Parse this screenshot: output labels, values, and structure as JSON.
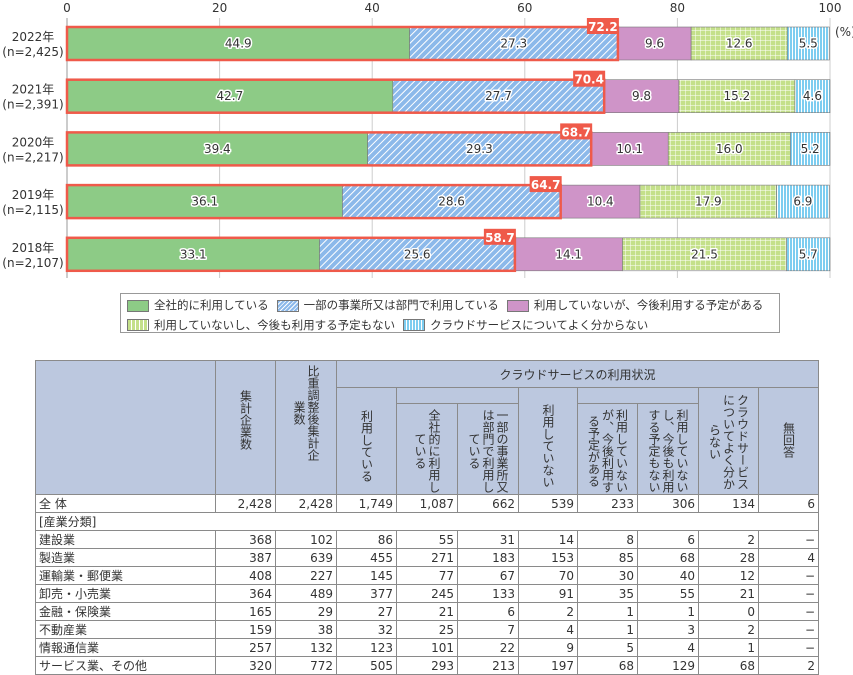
{
  "chart_data": {
    "type": "bar",
    "orientation": "horizontal",
    "stacked": true,
    "unit_label": "(%)",
    "xlim": [
      0,
      100
    ],
    "xticks": [
      "0",
      "20",
      "40",
      "60",
      "80",
      "100"
    ],
    "grid": true,
    "legend_position": "bottom",
    "categories": [
      {
        "year": "2022年",
        "n": "(n=2,425)"
      },
      {
        "year": "2021年",
        "n": "(n=2,391)"
      },
      {
        "year": "2020年",
        "n": "(n=2,217)"
      },
      {
        "year": "2019年",
        "n": "(n=2,115)"
      },
      {
        "year": "2018年",
        "n": "(n=2,107)"
      }
    ],
    "series": [
      {
        "name": "全社的に利用している",
        "color": "#8dcb86",
        "values": [
          44.9,
          42.7,
          39.4,
          36.1,
          33.1
        ]
      },
      {
        "name": "一部の事業所又は部門で利用している",
        "color": "#7fb0e6",
        "pattern": "diagonal",
        "values": [
          27.3,
          27.7,
          29.3,
          28.6,
          25.6
        ]
      },
      {
        "name": "利用していないが、今後利用する予定がある",
        "color": "#cf94c8",
        "values": [
          9.6,
          9.8,
          10.1,
          10.4,
          14.1
        ]
      },
      {
        "name": "利用していないし、今後も利用する予定もない",
        "color": "#c4e08a",
        "pattern": "grid",
        "values": [
          12.6,
          15.2,
          16.0,
          17.9,
          21.5
        ]
      },
      {
        "name": "クラウドサービスについてよく分からない",
        "color": "#7dcdf0",
        "pattern": "vertical",
        "values": [
          5.5,
          4.6,
          5.2,
          6.9,
          5.7
        ]
      }
    ],
    "highlight_totals": [
      "72.2",
      "70.4",
      "68.7",
      "64.7",
      "58.7"
    ],
    "highlight_color": "#ef5a4a"
  },
  "table": {
    "group_header": "クラウドサービスの利用状況",
    "headers": {
      "count": "集計企業数",
      "weighted": "比重調整後集計企業数",
      "using": "利用している",
      "using_all": "全社的に利用している",
      "using_part": "一部の事業所又は部門で利用している",
      "not_using": "利用していない",
      "not_plan": "利用していないが、今後利用する予定がある",
      "not_no_plan": "利用していないし、今後も利用する予定もない",
      "unknown": "クラウドサービスについてよく分からない",
      "no_answer": "無回答"
    },
    "total": {
      "label": "全 体",
      "values": [
        "2,428",
        "2,428",
        "1,749",
        "1,087",
        "662",
        "539",
        "233",
        "306",
        "134",
        "6"
      ]
    },
    "section_label": "[産業分類]",
    "rows": [
      {
        "label": "建設業",
        "values": [
          "368",
          "102",
          "86",
          "55",
          "31",
          "14",
          "8",
          "6",
          "2",
          "−"
        ]
      },
      {
        "label": "製造業",
        "values": [
          "387",
          "639",
          "455",
          "271",
          "183",
          "153",
          "85",
          "68",
          "28",
          "4"
        ]
      },
      {
        "label": "運輸業・郵便業",
        "values": [
          "408",
          "227",
          "145",
          "77",
          "67",
          "70",
          "30",
          "40",
          "12",
          "−"
        ]
      },
      {
        "label": "卸売・小売業",
        "values": [
          "364",
          "489",
          "377",
          "245",
          "133",
          "91",
          "35",
          "55",
          "21",
          "−"
        ]
      },
      {
        "label": "金融・保険業",
        "values": [
          "165",
          "29",
          "27",
          "21",
          "6",
          "2",
          "1",
          "1",
          "0",
          "−"
        ]
      },
      {
        "label": "不動産業",
        "values": [
          "159",
          "38",
          "32",
          "25",
          "7",
          "4",
          "1",
          "3",
          "2",
          "−"
        ]
      },
      {
        "label": "情報通信業",
        "values": [
          "257",
          "132",
          "123",
          "101",
          "22",
          "9",
          "5",
          "4",
          "1",
          "−"
        ]
      },
      {
        "label": "サービス業、その他",
        "values": [
          "320",
          "772",
          "505",
          "293",
          "213",
          "197",
          "68",
          "129",
          "68",
          "2"
        ]
      }
    ]
  }
}
